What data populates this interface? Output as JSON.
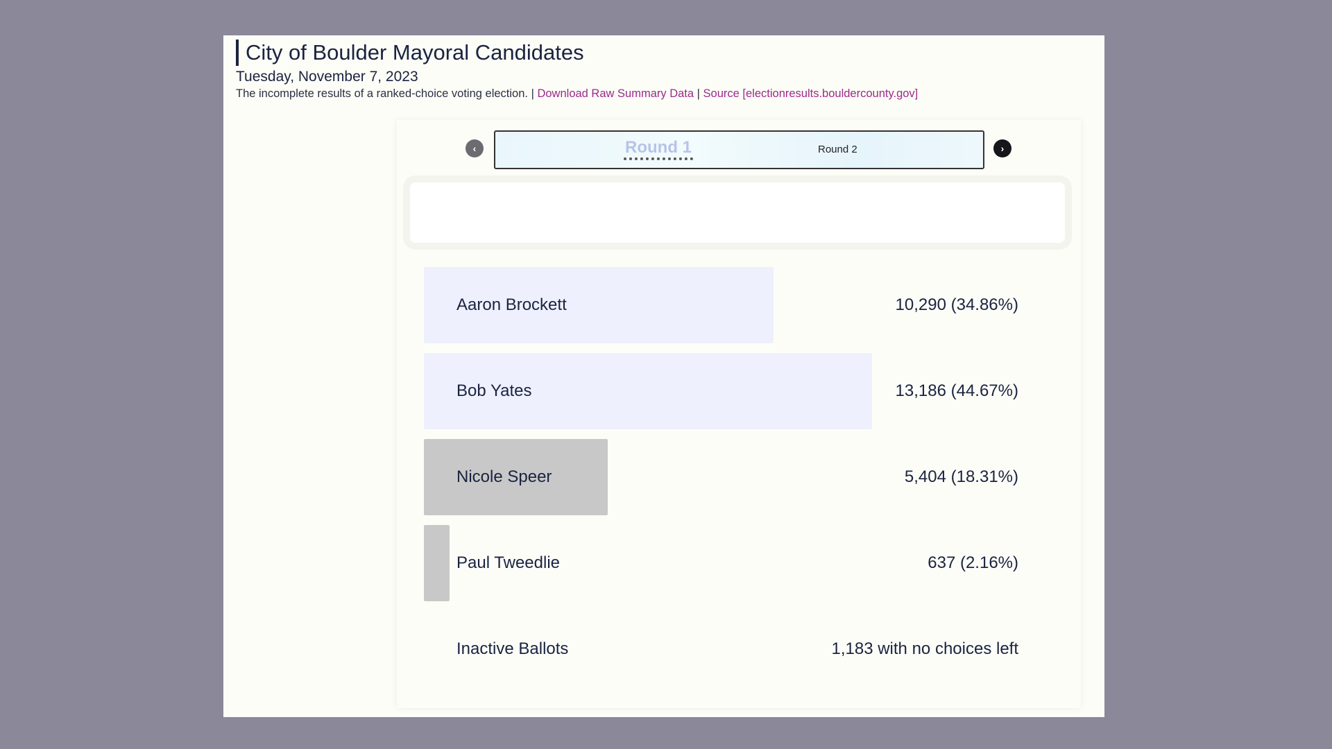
{
  "header": {
    "title": "City of Boulder Mayoral Candidates",
    "date": "Tuesday, November 7, 2023",
    "description": "The incomplete results of a ranked-choice voting election.",
    "separator": "|",
    "download_link": "Download Raw Summary Data",
    "source_link": "Source [electionresults.bouldercounty.gov]"
  },
  "rounds": {
    "prev_icon": "chevron-left-icon",
    "next_icon": "chevron-right-icon",
    "prev_glyph": "‹",
    "next_glyph": "›",
    "items": [
      "Round 1",
      "Round 2"
    ],
    "active": "Round 1"
  },
  "colors": {
    "active_bar": "#eef0fd",
    "eliminated_bar": "#c8c8c8",
    "link": "#9b2a8c",
    "text": "#1a2340"
  },
  "chart_data": {
    "type": "bar",
    "orientation": "horizontal",
    "categories": [
      "Aaron Brockett",
      "Bob Yates",
      "Nicole Speer",
      "Paul Tweedlie"
    ],
    "series": [
      {
        "values": [
          10290,
          13186,
          5404,
          637
        ],
        "percentages": [
          34.86,
          44.67,
          18.31,
          2.16
        ],
        "labels": [
          "10,290 (34.86%)",
          "13,186 (44.67%)",
          "5,404 (18.31%)",
          "637 (2.16%)"
        ],
        "eliminated": [
          false,
          false,
          true,
          true
        ]
      }
    ],
    "xlim": [
      0,
      17500
    ],
    "inactive": {
      "label": "Inactive Ballots",
      "value": 1183,
      "text": "1,183 with no choices left"
    }
  }
}
